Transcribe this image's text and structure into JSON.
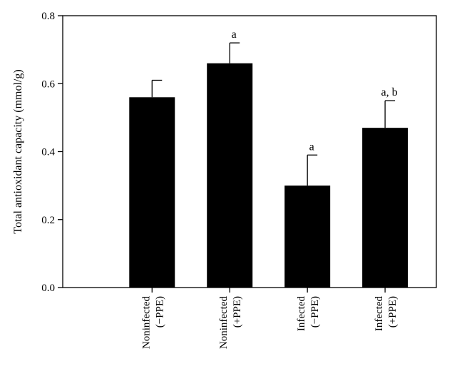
{
  "chart_data": {
    "type": "bar",
    "ylabel": "Total antioxidant capacity (mmol/g)",
    "xlabel": "",
    "ylim": [
      0.0,
      0.8
    ],
    "yticks": [
      0.0,
      0.2,
      0.4,
      0.6,
      0.8
    ],
    "ytick_labels": [
      "0.0",
      "0.2",
      "0.4",
      "0.6",
      "0.8"
    ],
    "categories": [
      [
        "Noninfected",
        "(−PPE)"
      ],
      [
        "Noninfected",
        "(+PPE)"
      ],
      [
        "Infected",
        "(−PPE)"
      ],
      [
        "Infected",
        "(+PPE)"
      ]
    ],
    "values": [
      0.56,
      0.66,
      0.3,
      0.47
    ],
    "errors": [
      0.05,
      0.06,
      0.09,
      0.08
    ],
    "annotations": [
      "",
      "a",
      "a",
      "a, b"
    ],
    "bar_color": "#000000",
    "grid": false
  }
}
